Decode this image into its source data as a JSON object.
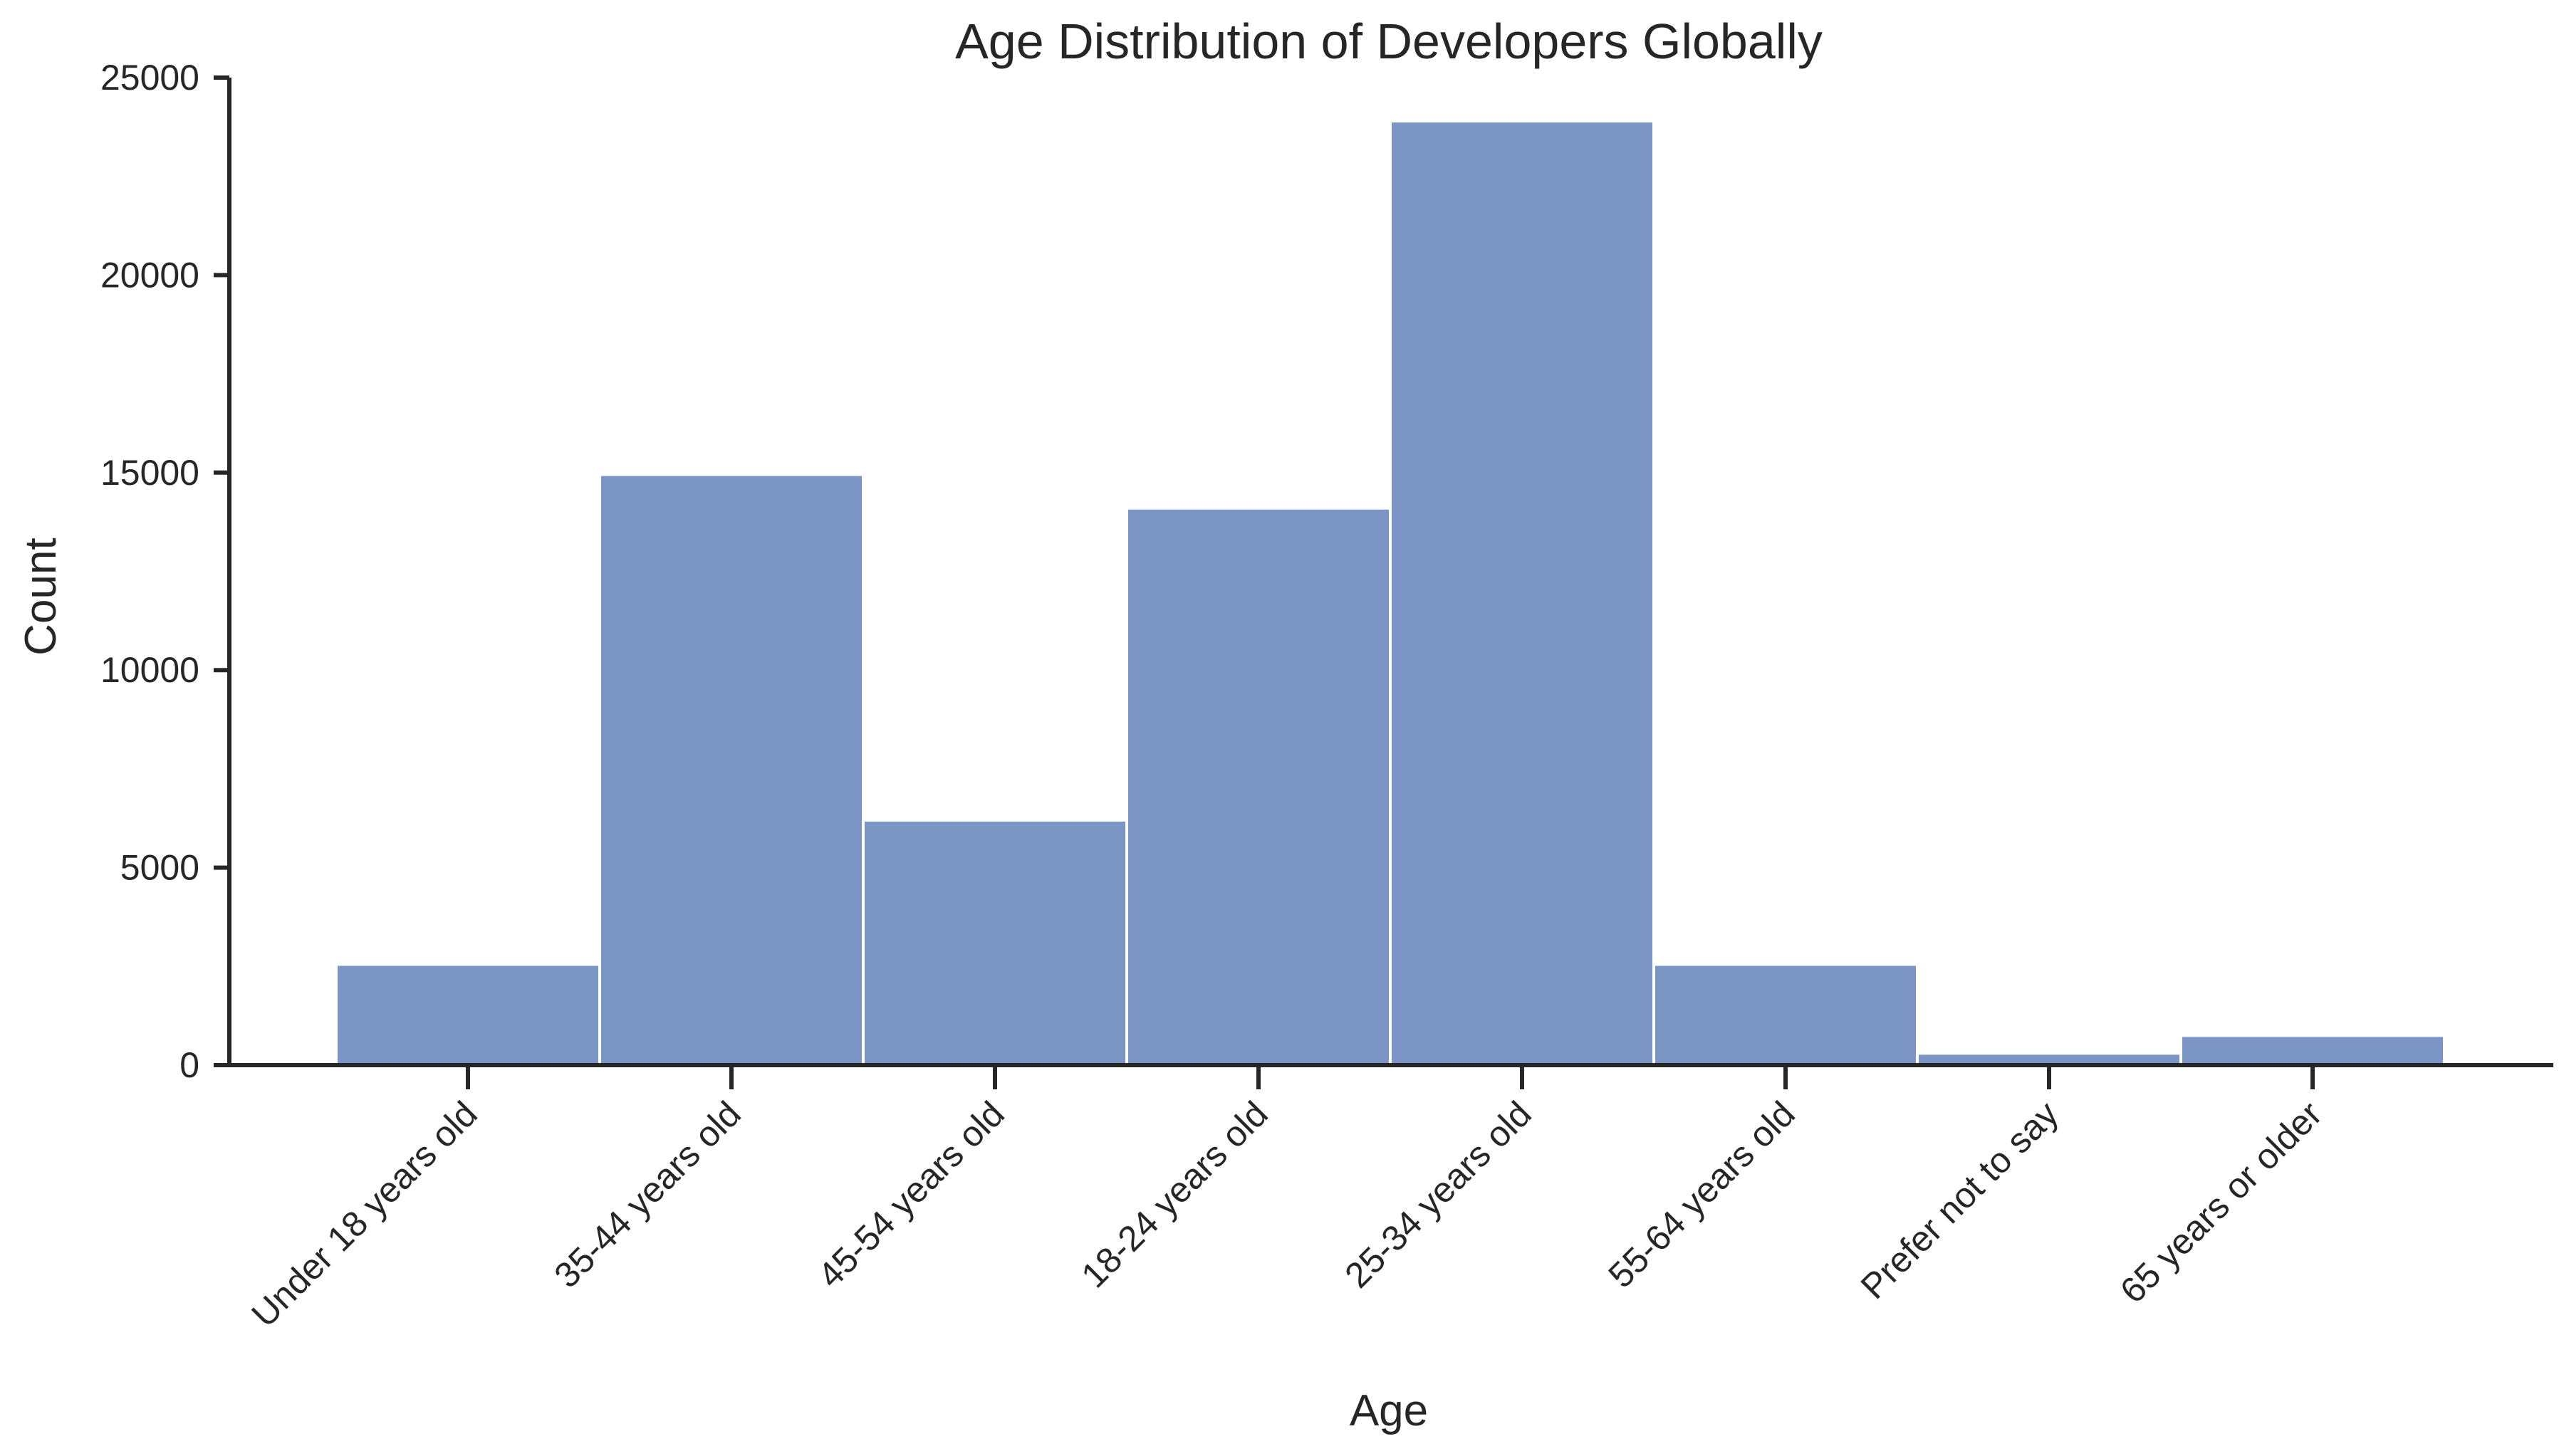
{
  "chart_data": {
    "type": "bar",
    "title": "Age Distribution of Developers Globally",
    "xlabel": "Age",
    "ylabel": "Count",
    "categories": [
      "Under 18 years old",
      "35-44 years old",
      "45-54 years old",
      "18-24 years old",
      "25-34 years old",
      "55-64 years old",
      "Prefer not to say",
      "65 years or older"
    ],
    "values": [
      2550,
      14950,
      6200,
      14100,
      23900,
      2550,
      300,
      750
    ],
    "ylim": [
      0,
      25000
    ],
    "yticks": [
      0,
      5000,
      10000,
      15000,
      20000,
      25000
    ],
    "bar_color": "#7b96c4",
    "grid": false,
    "legend": "none"
  }
}
